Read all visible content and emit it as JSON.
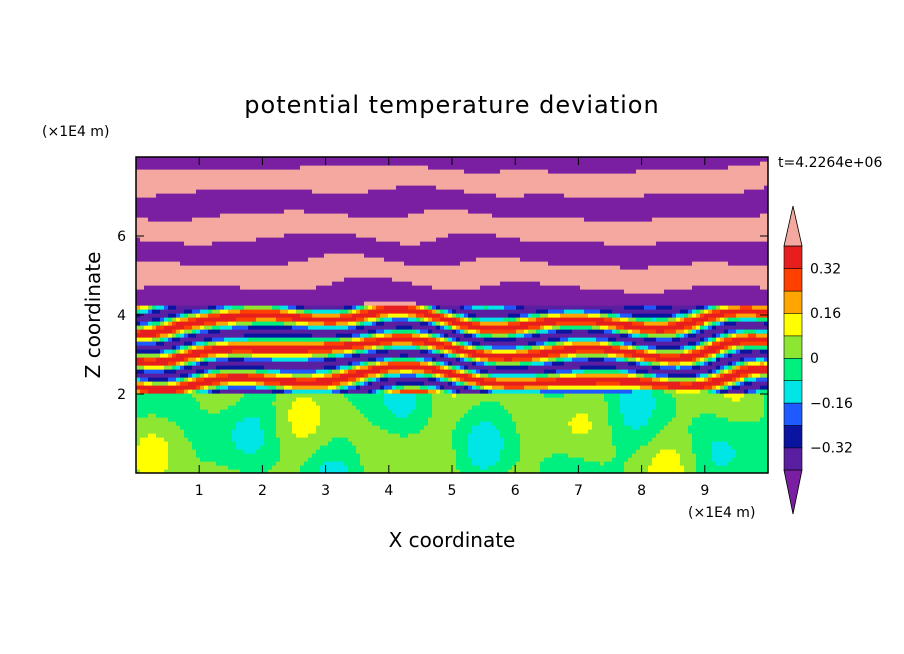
{
  "chart_data": {
    "type": "heatmap",
    "title": "potential temperature deviation",
    "xlabel": "X coordinate",
    "ylabel": "Z coordinate",
    "x_unit_label": "(×1E4 m)",
    "y_unit_label": "(×1E4 m)",
    "time_label": "t=4.2264e+06",
    "xlim": [
      0,
      10
    ],
    "ylim": [
      0,
      8
    ],
    "x_ticks": [
      1,
      2,
      3,
      4,
      5,
      6,
      7,
      8,
      9
    ],
    "y_ticks": [
      2,
      4,
      6
    ],
    "colorbar": {
      "levels": [
        -0.4,
        -0.32,
        -0.24,
        -0.16,
        -0.08,
        0,
        0.08,
        0.16,
        0.24,
        0.32,
        0.4
      ],
      "tick_labels": [
        {
          "value": 0.32,
          "label": "0.32"
        },
        {
          "value": 0.16,
          "label": "0.16"
        },
        {
          "value": 0,
          "label": "0"
        },
        {
          "value": -0.16,
          "label": "−0.16"
        },
        {
          "value": -0.32,
          "label": "−0.32"
        }
      ],
      "colors": [
        "#7b1fa2",
        "#5a1ea0",
        "#0a14a0",
        "#1e5aff",
        "#00e6e6",
        "#00f080",
        "#8ce632",
        "#ffff00",
        "#ffa500",
        "#ff4000",
        "#e61e1e",
        "#f4a8a0"
      ],
      "extend": "both"
    },
    "regions": [
      {
        "z_range": [
          0,
          2
        ],
        "description_values": [
          -0.08,
          0.08
        ],
        "pattern": "mixed"
      },
      {
        "z_range": [
          2,
          4.3
        ],
        "description_values": [
          -0.4,
          0.4
        ],
        "pattern": "turbulent"
      },
      {
        "z_range": [
          4.3,
          8
        ],
        "description_values": [
          -0.4,
          0.4
        ],
        "pattern": "layered"
      }
    ]
  }
}
